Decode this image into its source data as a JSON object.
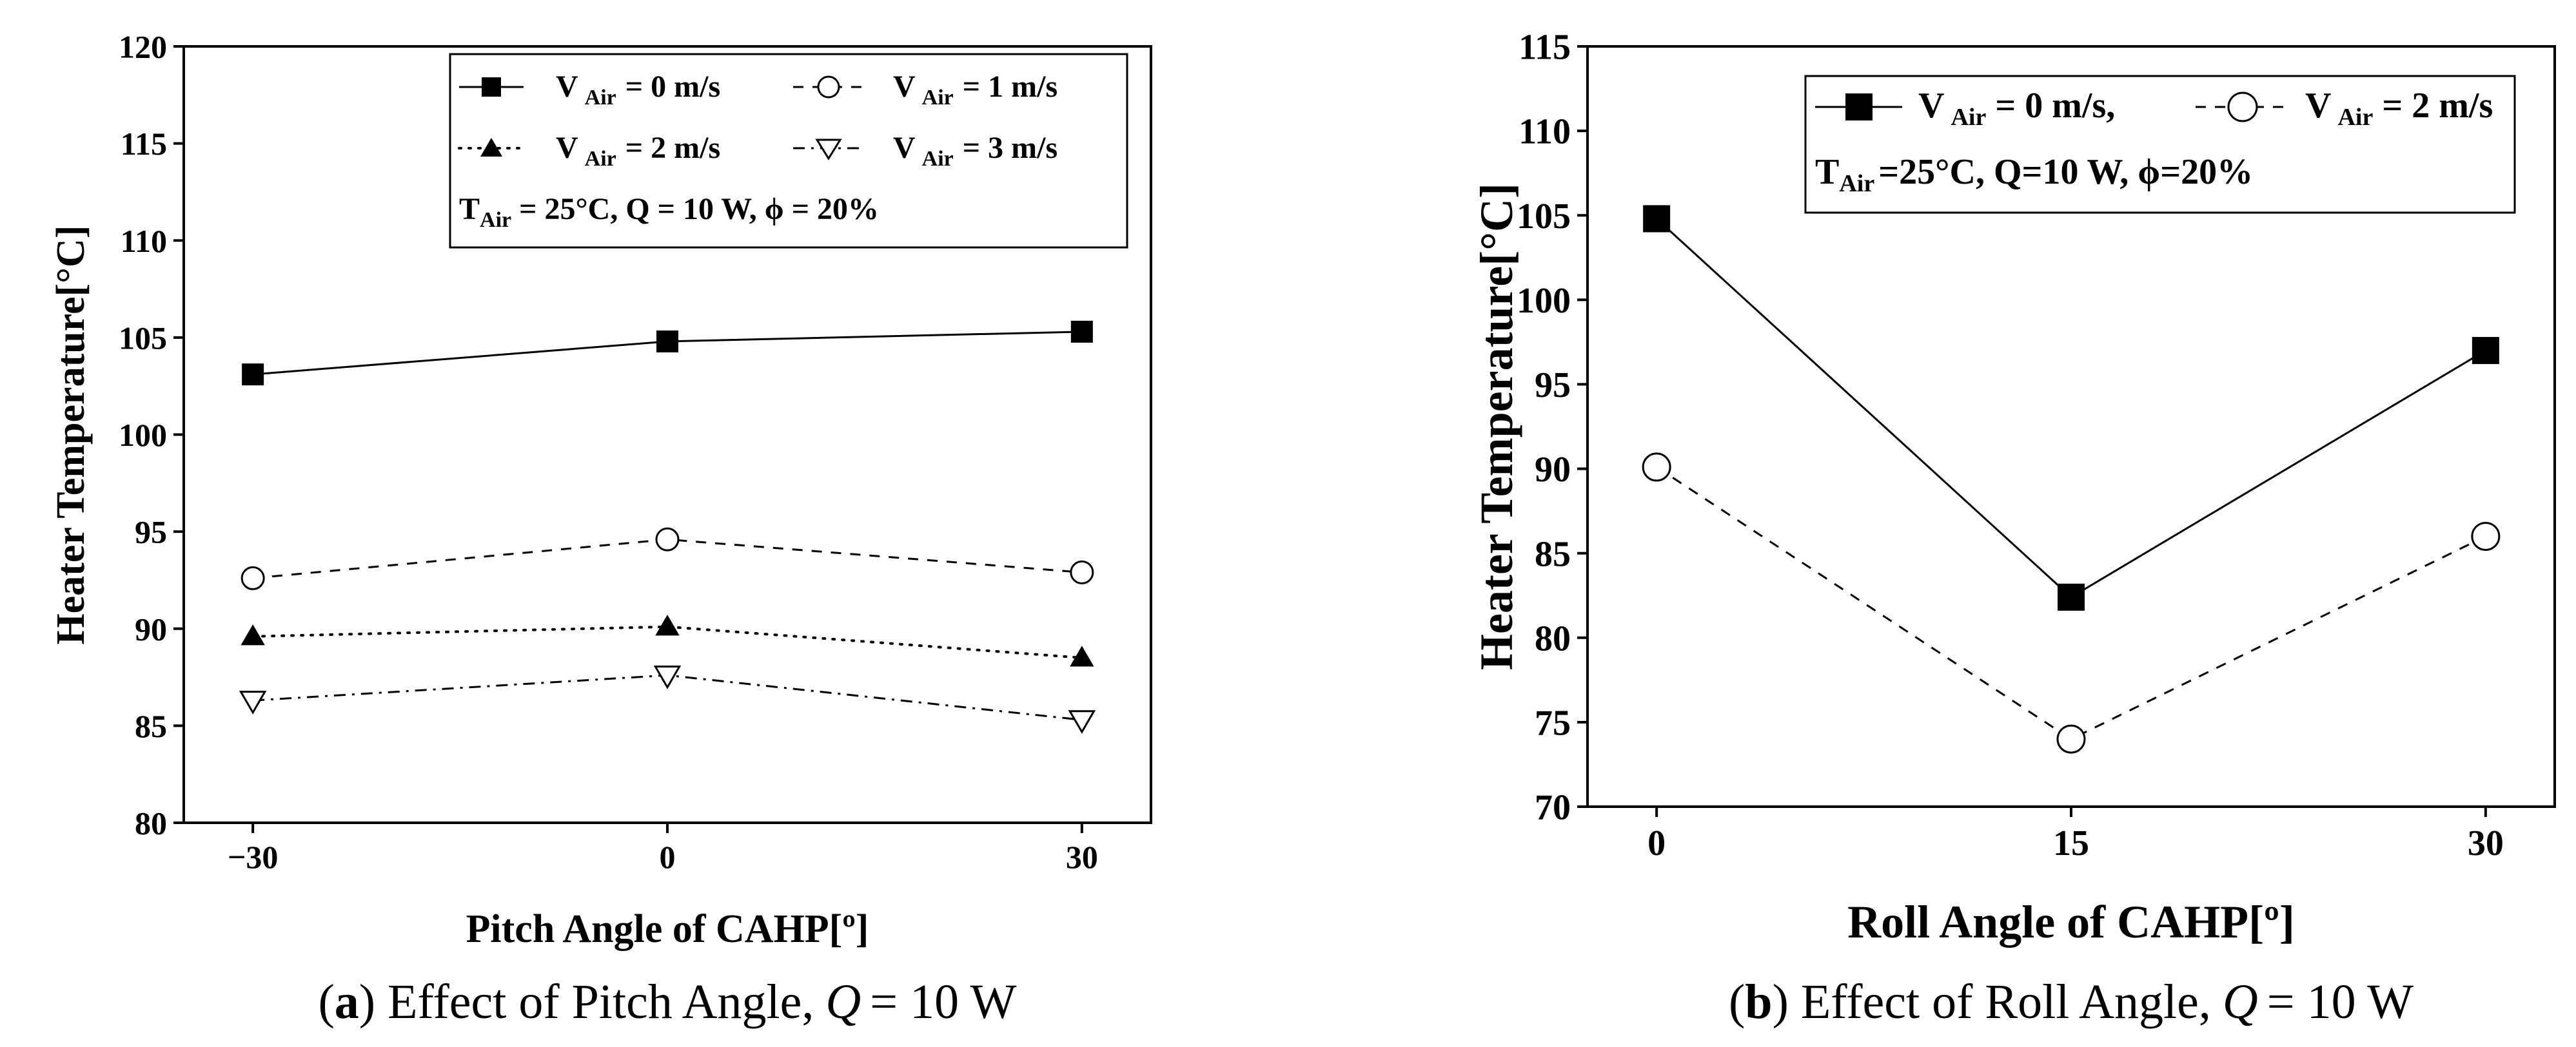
{
  "chart_data": [
    {
      "type": "line",
      "panel": "a",
      "caption_label": "a",
      "caption_text": "Effect of Pitch Angle,",
      "caption_q": "Q",
      "caption_tail": "= 10 W",
      "xlabel": "Pitch Angle of CAHP[º]",
      "ylabel": "Heater Temperature[°C]",
      "x": [
        -30,
        0,
        30
      ],
      "x_ticks": [
        "−30",
        "0",
        "30"
      ],
      "xlim": [
        -35,
        35
      ],
      "ylim": [
        80,
        120
      ],
      "y_ticks": [
        "80",
        "85",
        "90",
        "95",
        "100",
        "105",
        "110",
        "115",
        "120"
      ],
      "series": [
        {
          "name": "V Air = 0 m/s",
          "v_letter": "V",
          "v_sub": "Air",
          "v_value": "= 0 m/s",
          "values": [
            103.1,
            104.8,
            105.3
          ],
          "marker": "square-filled",
          "line": "solid"
        },
        {
          "name": "V Air = 1 m/s",
          "v_letter": "V",
          "v_sub": "Air",
          "v_value": "= 1 m/s",
          "values": [
            92.6,
            94.6,
            92.9
          ],
          "marker": "circle-open",
          "line": "dashed"
        },
        {
          "name": "V Air = 2 m/s",
          "v_letter": "V",
          "v_sub": "Air",
          "v_value": "= 2 m/s",
          "values": [
            89.6,
            90.1,
            88.5
          ],
          "marker": "triangle-up-filled",
          "line": "dotted"
        },
        {
          "name": "V Air = 3 m/s",
          "v_letter": "V",
          "v_sub": "Air",
          "v_value": "= 3 m/s",
          "values": [
            86.3,
            87.6,
            85.3
          ],
          "marker": "triangle-down-open",
          "line": "dashdot"
        }
      ],
      "conditions": {
        "t_letter": "T",
        "t_sub": "Air",
        "text": "= 25°C, Q = 10 W, ϕ = 20%"
      },
      "legend_position": "top-right"
    },
    {
      "type": "line",
      "panel": "b",
      "caption_label": "b",
      "caption_text": "Effect of Roll Angle,",
      "caption_q": "Q",
      "caption_tail": "= 10 W",
      "xlabel": "Roll Angle of CAHP[º]",
      "ylabel": "Heater Temperature[°C]",
      "x": [
        0,
        15,
        30
      ],
      "x_ticks": [
        "0",
        "15",
        "30"
      ],
      "xlim": [
        -2.5,
        32.5
      ],
      "ylim": [
        70,
        115
      ],
      "y_ticks": [
        "70",
        "75",
        "80",
        "85",
        "90",
        "95",
        "100",
        "105",
        "110",
        "115"
      ],
      "series": [
        {
          "name": "V Air = 0 m/s,",
          "v_letter": "V",
          "v_sub": "Air",
          "v_value": "= 0 m/s,",
          "values": [
            104.8,
            82.4,
            97.0
          ],
          "marker": "square-filled",
          "line": "solid"
        },
        {
          "name": "V Air = 2 m/s",
          "v_letter": "V",
          "v_sub": "Air",
          "v_value": "= 2 m/s",
          "values": [
            90.1,
            74.0,
            86.0
          ],
          "marker": "circle-open",
          "line": "dashed"
        }
      ],
      "conditions": {
        "t_letter": "T",
        "t_sub": "Air",
        "text": "=25°C, Q=10 W, ϕ=20%"
      },
      "legend_position": "top-right"
    }
  ]
}
